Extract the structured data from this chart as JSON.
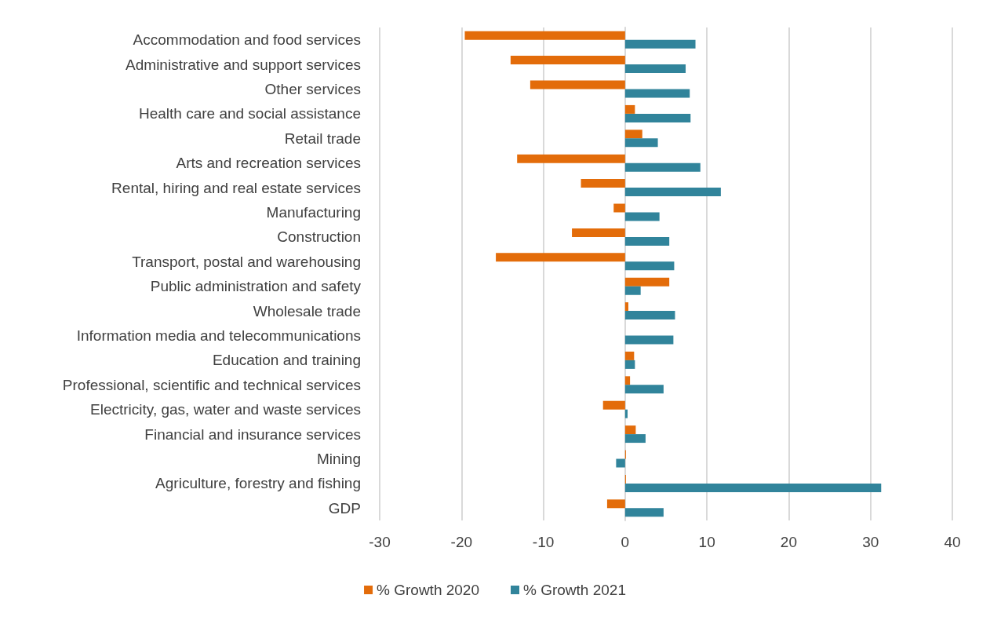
{
  "chart_data": {
    "type": "bar",
    "orientation": "horizontal",
    "categories": [
      "Accommodation and food services",
      "Administrative and support services",
      "Other services",
      "Health care and social assistance",
      "Retail trade",
      "Arts and recreation services",
      "Rental, hiring and real estate services",
      "Manufacturing",
      "Construction",
      "Transport, postal and warehousing",
      "Public administration and safety",
      "Wholesale trade",
      "Information media and telecommunications",
      "Education and training",
      "Professional, scientific and technical services",
      "Electricity, gas, water and waste services",
      "Financial and insurance services",
      "Mining",
      "Agriculture, forestry and fishing",
      "GDP"
    ],
    "series": [
      {
        "name": "% Growth 2020",
        "color": "#e36c0a",
        "values": [
          -19.6,
          -14.0,
          -11.6,
          1.2,
          2.1,
          -13.2,
          -5.4,
          -1.4,
          -6.5,
          -15.8,
          5.4,
          0.4,
          0,
          1.1,
          0.6,
          -2.7,
          1.3,
          0.1,
          0.1,
          -2.2
        ]
      },
      {
        "name": "% Growth 2021",
        "color": "#31849b",
        "values": [
          8.6,
          7.4,
          7.9,
          8.0,
          4.0,
          9.2,
          11.7,
          4.2,
          5.4,
          6.0,
          1.9,
          6.1,
          5.9,
          1.2,
          4.7,
          0.3,
          2.5,
          -1.1,
          31.3,
          4.7
        ]
      }
    ],
    "xlim": [
      -30,
      40
    ],
    "xticks": [
      -30,
      -20,
      -10,
      0,
      10,
      20,
      30,
      40
    ],
    "grid": "x",
    "legend": "bottom"
  }
}
